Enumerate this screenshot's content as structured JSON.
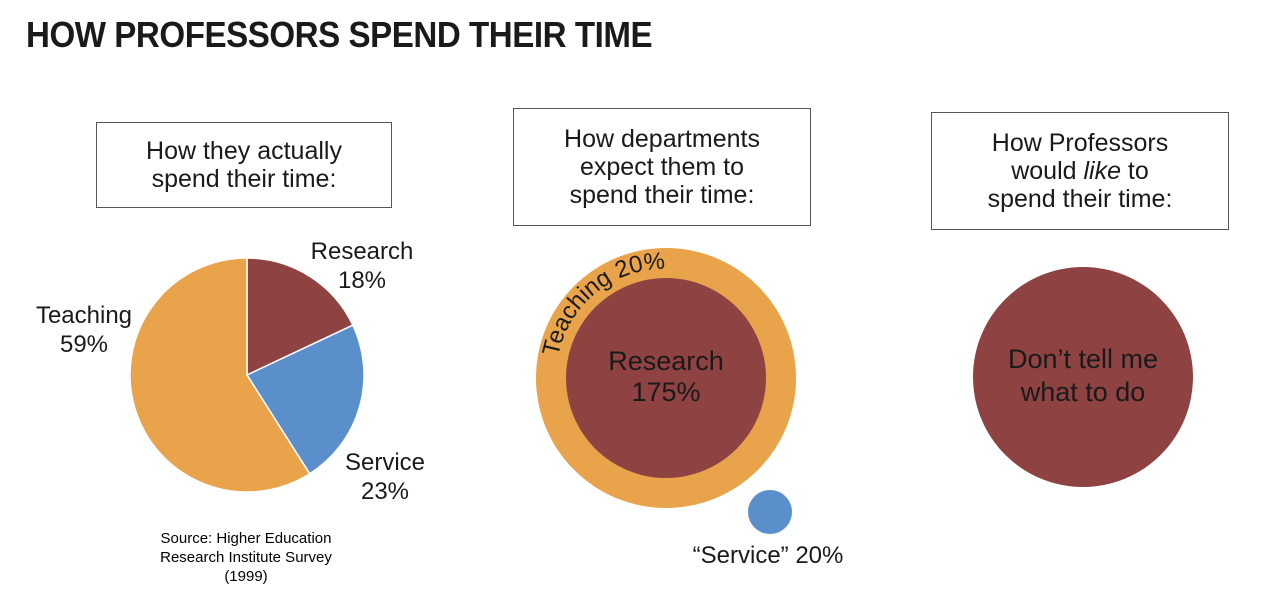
{
  "title": "HOW PROFESSORS SPEND THEIR TIME",
  "colors": {
    "teaching": "#E9A44B",
    "research": "#8E4242",
    "service": "#5B8FCC"
  },
  "panels": [
    {
      "caption": [
        "How they actually",
        "spend their time:"
      ]
    },
    {
      "caption": [
        "How departments",
        "expect them to",
        "spend their time:"
      ]
    },
    {
      "caption_pre": "would ",
      "caption_em": "like",
      "caption_post": " to",
      "caption": [
        "How Professors",
        "would like to",
        "spend their time:"
      ]
    }
  ],
  "source_note": [
    "Source: Higher Education",
    "Research Institute Survey",
    "(1999)"
  ],
  "chart_data": [
    {
      "type": "pie",
      "slices": [
        {
          "label": "Research",
          "value": 18,
          "value_text": "18%"
        },
        {
          "label": "Service",
          "value": 23,
          "value_text": "23%"
        },
        {
          "label": "Teaching",
          "value": 59,
          "value_text": "59%"
        }
      ]
    },
    {
      "type": "bubble",
      "items": [
        {
          "label": "Research",
          "value_text": "175%"
        },
        {
          "label": "Teaching",
          "value_text": "20%",
          "text": "Teaching 20%"
        },
        {
          "label": "“Service”",
          "value_text": "20%",
          "text": "“Service” 20%"
        }
      ]
    },
    {
      "type": "bubble",
      "items": [
        {
          "text_lines": [
            "Don’t tell me",
            "what to do"
          ]
        }
      ]
    }
  ]
}
